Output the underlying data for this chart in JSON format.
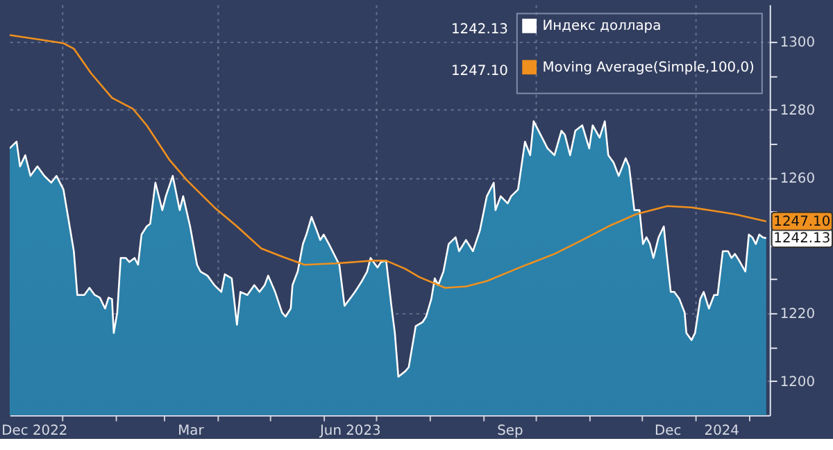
{
  "chart_data": {
    "type": "area",
    "x": [
      "2022-12-02",
      "2022-12-06",
      "2022-12-08",
      "2022-12-11",
      "2022-12-14",
      "2022-12-18",
      "2022-12-22",
      "2022-12-26",
      "2022-12-29",
      "2023-01-02",
      "2023-01-06",
      "2023-01-08",
      "2023-01-10",
      "2023-01-14",
      "2023-01-17",
      "2023-01-20",
      "2023-01-23",
      "2023-01-26",
      "2023-01-28",
      "2023-01-30",
      "2023-01-31",
      "2023-02-02",
      "2023-02-04",
      "2023-02-07",
      "2023-02-09",
      "2023-02-12",
      "2023-02-14",
      "2023-02-16",
      "2023-02-19",
      "2023-02-21",
      "2023-02-24",
      "2023-02-28",
      "2023-03-02",
      "2023-03-06",
      "2023-03-10",
      "2023-03-12",
      "2023-03-16",
      "2023-03-20",
      "2023-03-22",
      "2023-03-26",
      "2023-03-30",
      "2023-04-03",
      "2023-04-05",
      "2023-04-09",
      "2023-04-12",
      "2023-04-14",
      "2023-04-18",
      "2023-04-22",
      "2023-04-25",
      "2023-04-28",
      "2023-04-30",
      "2023-05-04",
      "2023-05-08",
      "2023-05-10",
      "2023-05-13",
      "2023-05-14",
      "2023-05-17",
      "2023-05-20",
      "2023-05-22",
      "2023-05-25",
      "2023-05-28",
      "2023-05-30",
      "2023-06-01",
      "2023-06-04",
      "2023-06-10",
      "2023-06-13",
      "2023-06-16",
      "2023-06-19",
      "2023-06-23",
      "2023-06-26",
      "2023-06-28",
      "2023-07-02",
      "2023-07-04",
      "2023-07-07",
      "2023-07-10",
      "2023-07-12",
      "2023-07-14",
      "2023-07-18",
      "2023-07-20",
      "2023-07-24",
      "2023-07-28",
      "2023-07-30",
      "2023-08-02",
      "2023-08-04",
      "2023-08-06",
      "2023-08-09",
      "2023-08-12",
      "2023-08-16",
      "2023-08-18",
      "2023-08-22",
      "2023-08-26",
      "2023-08-30",
      "2023-09-03",
      "2023-09-07",
      "2023-09-08",
      "2023-09-11",
      "2023-09-15",
      "2023-09-17",
      "2023-09-21",
      "2023-09-25",
      "2023-09-28",
      "2023-09-30",
      "2023-10-04",
      "2023-10-08",
      "2023-10-12",
      "2023-10-16",
      "2023-10-18",
      "2023-10-21",
      "2023-10-24",
      "2023-10-28",
      "2023-11-01",
      "2023-11-03",
      "2023-11-07",
      "2023-11-10",
      "2023-11-12",
      "2023-11-15",
      "2023-11-18",
      "2023-11-22",
      "2023-11-24",
      "2023-11-27",
      "2023-11-30",
      "2023-12-02",
      "2023-12-04",
      "2023-12-06",
      "2023-12-08",
      "2023-12-11",
      "2023-12-14",
      "2023-12-15",
      "2023-12-18",
      "2023-12-20",
      "2023-12-23",
      "2023-12-26",
      "2023-12-27",
      "2023-12-30",
      "2024-01-01",
      "2024-01-04",
      "2024-01-06",
      "2024-01-09",
      "2024-01-12",
      "2024-01-14",
      "2024-01-17",
      "2024-01-20",
      "2024-01-22",
      "2024-01-24",
      "2024-01-26",
      "2024-01-30",
      "2024-02-01",
      "2024-02-03",
      "2024-02-05",
      "2024-02-07",
      "2024-02-09",
      "2024-02-11"
    ],
    "series": [
      {
        "name": "Индекс доллара",
        "color": "#ffffff",
        "type": "area",
        "values": [
          1268.6,
          1270.6,
          1263.3,
          1266.6,
          1260.5,
          1263.3,
          1260.5,
          1258.5,
          1260.5,
          1256.5,
          1244.4,
          1238.3,
          1225.4,
          1225.4,
          1227.5,
          1225.4,
          1224.6,
          1221.4,
          1224.6,
          1224.2,
          1214.2,
          1220.2,
          1236.3,
          1236.3,
          1235.1,
          1236.3,
          1234.3,
          1243.2,
          1245.6,
          1246.4,
          1258.5,
          1250.4,
          1254.5,
          1260.5,
          1250.4,
          1254.5,
          1245.6,
          1234.3,
          1232.3,
          1231.1,
          1228.3,
          1226.3,
          1231.5,
          1230.3,
          1216.6,
          1226.3,
          1225.4,
          1228.3,
          1226.3,
          1228.3,
          1231.1,
          1226.3,
          1220.2,
          1219.0,
          1221.4,
          1228.3,
          1232.3,
          1240.4,
          1243.2,
          1248.4,
          1244.4,
          1241.6,
          1243.2,
          1240.4,
          1234.3,
          1222.2,
          1224.2,
          1226.3,
          1229.5,
          1232.3,
          1236.3,
          1233.5,
          1235.1,
          1235.5,
          1222.2,
          1214.2,
          1201.3,
          1202.9,
          1204.1,
          1216.2,
          1217.4,
          1219.0,
          1224.2,
          1230.3,
          1228.3,
          1232.3,
          1240.4,
          1242.4,
          1238.3,
          1241.6,
          1238.3,
          1244.4,
          1254.5,
          1258.5,
          1250.4,
          1254.5,
          1252.4,
          1254.5,
          1256.5,
          1270.6,
          1266.6,
          1276.6,
          1272.6,
          1268.6,
          1266.6,
          1273.8,
          1272.6,
          1266.6,
          1273.8,
          1275.4,
          1268.6,
          1275.4,
          1271.8,
          1276.6,
          1266.6,
          1264.5,
          1260.5,
          1265.7,
          1263.3,
          1250.4,
          1250.4,
          1240.4,
          1242.4,
          1240.4,
          1236.3,
          1242.4,
          1245.6,
          1240.4,
          1226.3,
          1226.3,
          1224.2,
          1220.2,
          1214.2,
          1212.1,
          1214.2,
          1224.2,
          1226.3,
          1221.4,
          1225.4,
          1225.4,
          1238.3,
          1238.3,
          1236.3,
          1237.5,
          1235.9,
          1232.3,
          1243.2,
          1242.4,
          1240.4,
          1243.2,
          1242.4,
          1242.13
        ]
      },
      {
        "name": "Moving Average(Simple,100,0)",
        "color": "#f0901e",
        "type": "line",
        "x": [
          "2022-12-02",
          "2022-12-18",
          "2023-01-02",
          "2023-01-08",
          "2023-01-18",
          "2023-01-30",
          "2023-02-11",
          "2023-02-19",
          "2023-03-04",
          "2023-03-14",
          "2023-03-30",
          "2023-04-12",
          "2023-04-26",
          "2023-05-08",
          "2023-05-21",
          "2023-06-08",
          "2023-06-29",
          "2023-07-07",
          "2023-07-18",
          "2023-07-26",
          "2023-08-10",
          "2023-08-22",
          "2023-09-03",
          "2023-09-22",
          "2023-10-12",
          "2023-10-28",
          "2023-11-12",
          "2023-11-28",
          "2023-12-16",
          "2023-12-30",
          "2024-01-14",
          "2024-01-24",
          "2024-02-11"
        ],
        "values": [
          1302.0,
          1300.8,
          1299.6,
          1298.0,
          1290.7,
          1283.5,
          1280.3,
          1275.4,
          1265.3,
          1259.3,
          1251.2,
          1245.6,
          1239.1,
          1236.7,
          1234.3,
          1234.7,
          1235.5,
          1235.5,
          1233.1,
          1230.7,
          1227.5,
          1227.9,
          1229.5,
          1233.5,
          1237.5,
          1241.6,
          1245.6,
          1249.2,
          1251.6,
          1251.2,
          1250.0,
          1249.2,
          1247.1
        ]
      }
    ],
    "xlim": [
      "2022-12-02",
      "2024-02-13"
    ],
    "ylim": [
      1190,
      1311
    ],
    "xticks": [
      {
        "value": "2022-12-16",
        "label": "Dec\n2022"
      },
      {
        "value": "2023-03-16",
        "label": "Mar"
      },
      {
        "value": "2023-06-16",
        "label": "Jun\n2023"
      },
      {
        "value": "2023-09-16",
        "label": "Sep"
      },
      {
        "value": "2023-12-16",
        "label": "Dec"
      },
      {
        "value": "2024-01-16",
        "label": "\n2024"
      },
      {
        "value": "2023-01-01",
        "label": null
      },
      {
        "value": "2023-02-01",
        "label": null
      },
      {
        "value": "2023-03-01",
        "label": null
      },
      {
        "value": "2023-04-01",
        "label": null
      },
      {
        "value": "2023-05-01",
        "label": null
      },
      {
        "value": "2023-06-01",
        "label": null
      },
      {
        "value": "2023-07-01",
        "label": null
      },
      {
        "value": "2023-08-01",
        "label": null
      },
      {
        "value": "2023-09-01",
        "label": null
      },
      {
        "value": "2023-10-01",
        "label": null
      },
      {
        "value": "2023-11-01",
        "label": null
      },
      {
        "value": "2023-12-01",
        "label": null
      },
      {
        "value": "2024-01-01",
        "label": null
      },
      {
        "value": "2024-02-01",
        "label": null
      }
    ],
    "yticks": [
      1200,
      {
        "value": 1210,
        "label": null
      },
      1220,
      {
        "value": 1230,
        "label": null
      },
      {
        "value": 1240,
        "label": null
      },
      {
        "value": 1250,
        "label": null
      },
      1260,
      {
        "value": 1270,
        "label": null
      },
      1280,
      {
        "value": 1290,
        "label": null
      },
      1300
    ],
    "grid": true,
    "legend": "top right",
    "annotations": [
      "1242.13",
      "1247.10",
      {
        "text": "1242.13",
        "x": "2024-02-11",
        "y": 1242.13
      },
      {
        "text": "1247.10",
        "x": "2024-02-11",
        "y": 1247.1
      }
    ]
  }
}
